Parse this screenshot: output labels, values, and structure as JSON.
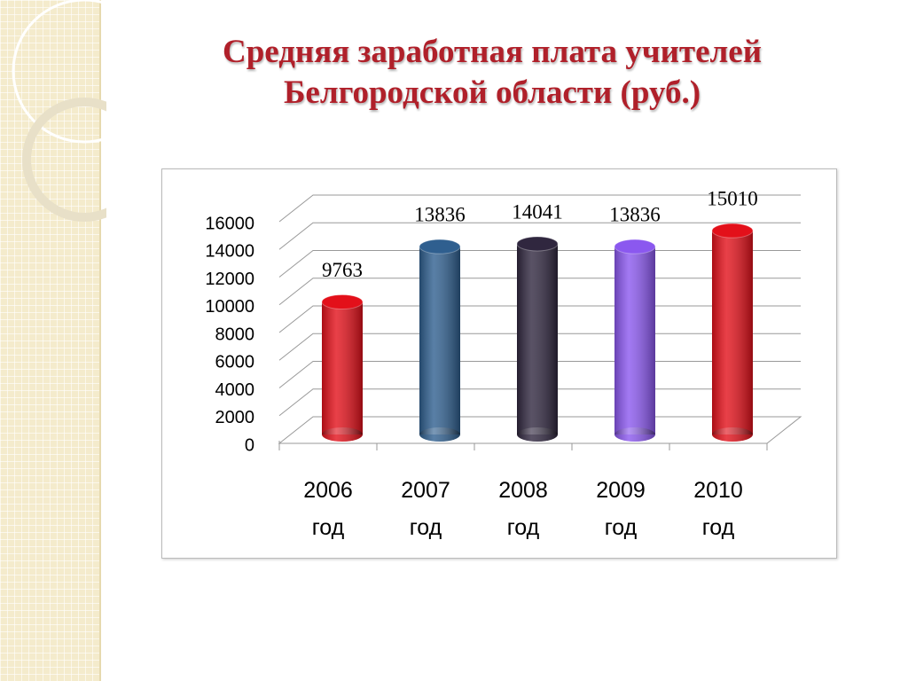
{
  "chart_data": {
    "type": "bar",
    "title": "Средняя заработная плата учителей Белгородской области (руб.)",
    "categories": [
      "2006 год",
      "2007 год",
      "2008 год",
      "2009 год",
      "2010 год"
    ],
    "values": [
      9763,
      13836,
      14041,
      13836,
      15010
    ],
    "colors": [
      "#e3101a",
      "#2f5f8f",
      "#30273f",
      "#8b58ef",
      "#e3101a"
    ],
    "ylim": [
      0,
      16000
    ],
    "yticks": [
      0,
      2000,
      4000,
      6000,
      8000,
      10000,
      12000,
      14000,
      16000
    ],
    "grid": true
  }
}
